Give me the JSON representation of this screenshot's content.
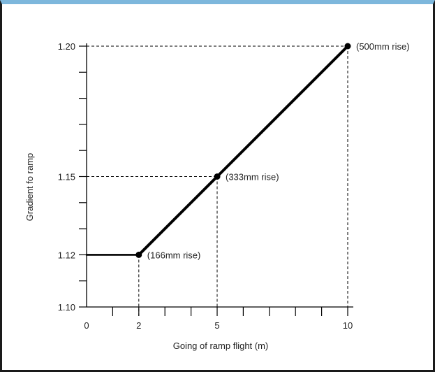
{
  "chart_data": {
    "type": "line",
    "title": "",
    "xlabel": "Going of ramp flight (m)",
    "ylabel": "Gradient fo ramp",
    "xlim": [
      0,
      10
    ],
    "ylim": [
      1.1,
      1.2
    ],
    "x_ticks": [
      "0",
      "2",
      "5",
      "10"
    ],
    "y_ticks": [
      "1.10",
      "1.12",
      "1.15",
      "1.20"
    ],
    "grid": false,
    "series": [
      {
        "x": [
          0,
          2,
          5,
          10
        ],
        "y": [
          1.12,
          1.12,
          1.15,
          1.2
        ]
      }
    ],
    "annotations": [
      {
        "x": 2,
        "y": 1.12,
        "text": "(166mm rise)"
      },
      {
        "x": 5,
        "y": 1.15,
        "text": "(333mm rise)"
      },
      {
        "x": 10,
        "y": 1.2,
        "text": "(500mm rise)"
      }
    ],
    "colors": {
      "line": "#000000",
      "frame_top": "#7db7dc",
      "frame": "#1a1a1a"
    }
  }
}
